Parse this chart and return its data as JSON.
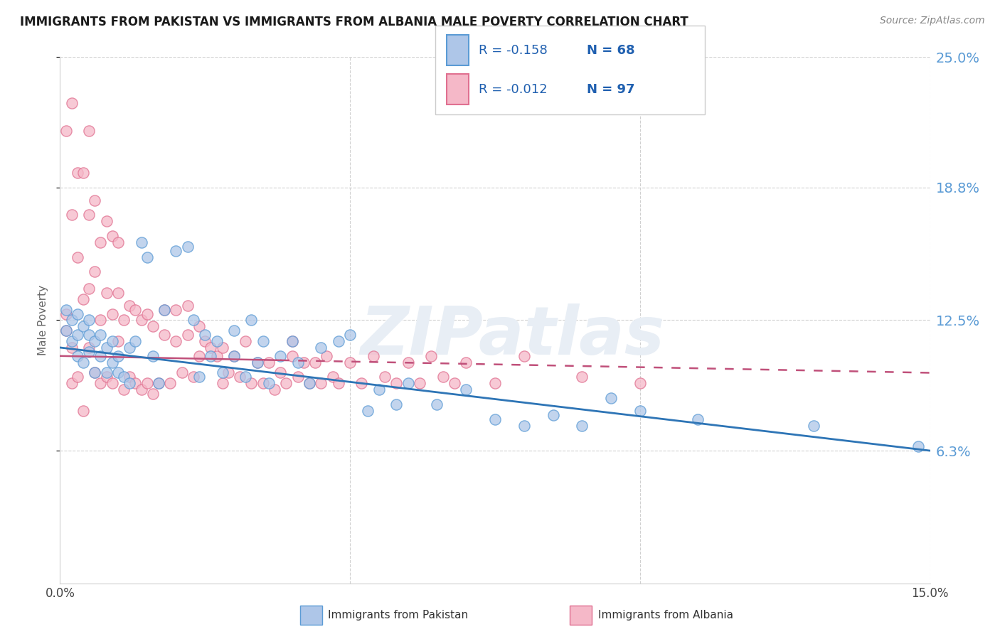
{
  "title": "IMMIGRANTS FROM PAKISTAN VS IMMIGRANTS FROM ALBANIA MALE POVERTY CORRELATION CHART",
  "source": "Source: ZipAtlas.com",
  "ylabel": "Male Poverty",
  "xlim": [
    0.0,
    0.15
  ],
  "ylim": [
    0.0,
    0.25
  ],
  "ytick_vals": [
    0.063,
    0.125,
    0.188,
    0.25
  ],
  "ytick_labels": [
    "6.3%",
    "12.5%",
    "18.8%",
    "25.0%"
  ],
  "xtick_vals": [
    0.0,
    0.05,
    0.1,
    0.15
  ],
  "xtick_labels": [
    "0.0%",
    "",
    "",
    "15.0%"
  ],
  "pakistan_R": -0.158,
  "pakistan_N": 68,
  "albania_R": -0.012,
  "albania_N": 97,
  "pakistan_color": "#aec6e8",
  "albania_color": "#f5b8c8",
  "pakistan_edge_color": "#5b9bd5",
  "albania_edge_color": "#e07090",
  "pakistan_trend_color": "#2e75b6",
  "albania_trend_color": "#c0507a",
  "legend_label_pakistan": "Immigrants from Pakistan",
  "legend_label_albania": "Immigrants from Albania",
  "background_color": "#ffffff",
  "grid_color": "#d0d0d0",
  "watermark": "ZIPatlas",
  "pakistan_trend_start_y": 0.112,
  "pakistan_trend_end_y": 0.063,
  "albania_trend_start_y": 0.108,
  "albania_trend_end_y": 0.1,
  "pakistan_x": [
    0.001,
    0.001,
    0.002,
    0.002,
    0.003,
    0.003,
    0.003,
    0.004,
    0.004,
    0.005,
    0.005,
    0.005,
    0.006,
    0.006,
    0.007,
    0.007,
    0.008,
    0.008,
    0.009,
    0.009,
    0.01,
    0.01,
    0.011,
    0.012,
    0.012,
    0.013,
    0.014,
    0.015,
    0.016,
    0.017,
    0.018,
    0.02,
    0.022,
    0.023,
    0.024,
    0.025,
    0.026,
    0.027,
    0.028,
    0.03,
    0.03,
    0.032,
    0.033,
    0.034,
    0.035,
    0.036,
    0.038,
    0.04,
    0.041,
    0.043,
    0.045,
    0.048,
    0.05,
    0.053,
    0.055,
    0.058,
    0.06,
    0.065,
    0.07,
    0.075,
    0.08,
    0.085,
    0.09,
    0.095,
    0.1,
    0.11,
    0.13,
    0.148
  ],
  "pakistan_y": [
    0.12,
    0.13,
    0.115,
    0.125,
    0.108,
    0.118,
    0.128,
    0.105,
    0.122,
    0.11,
    0.118,
    0.125,
    0.1,
    0.115,
    0.108,
    0.118,
    0.1,
    0.112,
    0.105,
    0.115,
    0.1,
    0.108,
    0.098,
    0.112,
    0.095,
    0.115,
    0.162,
    0.155,
    0.108,
    0.095,
    0.13,
    0.158,
    0.16,
    0.125,
    0.098,
    0.118,
    0.108,
    0.115,
    0.1,
    0.12,
    0.108,
    0.098,
    0.125,
    0.105,
    0.115,
    0.095,
    0.108,
    0.115,
    0.105,
    0.095,
    0.112,
    0.115,
    0.118,
    0.082,
    0.092,
    0.085,
    0.095,
    0.085,
    0.092,
    0.078,
    0.075,
    0.08,
    0.075,
    0.088,
    0.082,
    0.078,
    0.075,
    0.065
  ],
  "albania_x": [
    0.001,
    0.001,
    0.001,
    0.002,
    0.002,
    0.002,
    0.002,
    0.003,
    0.003,
    0.003,
    0.004,
    0.004,
    0.004,
    0.005,
    0.005,
    0.005,
    0.005,
    0.006,
    0.006,
    0.006,
    0.007,
    0.007,
    0.007,
    0.008,
    0.008,
    0.008,
    0.009,
    0.009,
    0.009,
    0.01,
    0.01,
    0.01,
    0.011,
    0.011,
    0.012,
    0.012,
    0.013,
    0.013,
    0.014,
    0.014,
    0.015,
    0.015,
    0.016,
    0.016,
    0.017,
    0.018,
    0.018,
    0.019,
    0.02,
    0.02,
    0.021,
    0.022,
    0.022,
    0.023,
    0.024,
    0.024,
    0.025,
    0.026,
    0.027,
    0.028,
    0.028,
    0.029,
    0.03,
    0.031,
    0.032,
    0.033,
    0.034,
    0.035,
    0.036,
    0.037,
    0.038,
    0.039,
    0.04,
    0.04,
    0.041,
    0.042,
    0.043,
    0.044,
    0.045,
    0.046,
    0.047,
    0.048,
    0.05,
    0.052,
    0.054,
    0.056,
    0.058,
    0.06,
    0.062,
    0.064,
    0.066,
    0.068,
    0.07,
    0.075,
    0.08,
    0.09,
    0.1
  ],
  "albania_y": [
    0.12,
    0.215,
    0.128,
    0.095,
    0.112,
    0.175,
    0.228,
    0.098,
    0.155,
    0.195,
    0.082,
    0.135,
    0.195,
    0.112,
    0.14,
    0.175,
    0.215,
    0.1,
    0.148,
    0.182,
    0.095,
    0.125,
    0.162,
    0.098,
    0.138,
    0.172,
    0.095,
    0.128,
    0.165,
    0.115,
    0.138,
    0.162,
    0.092,
    0.125,
    0.098,
    0.132,
    0.095,
    0.13,
    0.092,
    0.125,
    0.095,
    0.128,
    0.09,
    0.122,
    0.095,
    0.118,
    0.13,
    0.095,
    0.115,
    0.13,
    0.1,
    0.118,
    0.132,
    0.098,
    0.108,
    0.122,
    0.115,
    0.112,
    0.108,
    0.095,
    0.112,
    0.1,
    0.108,
    0.098,
    0.115,
    0.095,
    0.105,
    0.095,
    0.105,
    0.092,
    0.1,
    0.095,
    0.108,
    0.115,
    0.098,
    0.105,
    0.095,
    0.105,
    0.095,
    0.108,
    0.098,
    0.095,
    0.105,
    0.095,
    0.108,
    0.098,
    0.095,
    0.105,
    0.095,
    0.108,
    0.098,
    0.095,
    0.105,
    0.095,
    0.108,
    0.098,
    0.095
  ]
}
